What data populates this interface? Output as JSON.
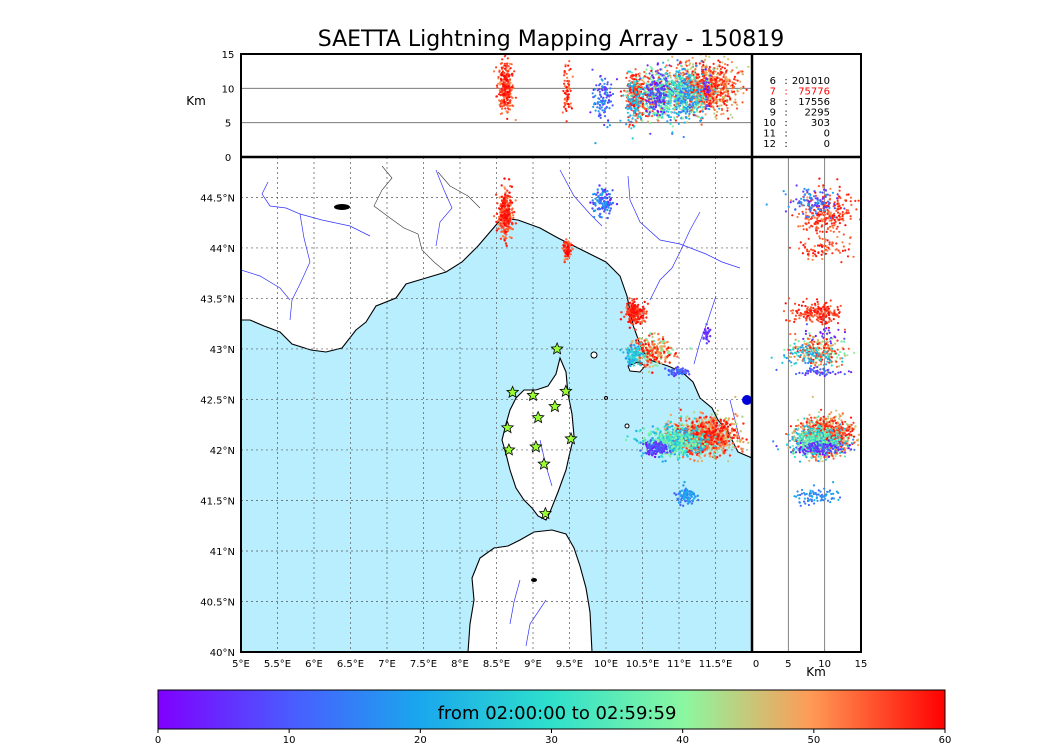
{
  "chart_data": {
    "type": "scatter",
    "title": "SAETTA Lightning Mapping Array - 150819",
    "top_panel": {
      "ylabel": "Km",
      "ylim": [
        0,
        15
      ],
      "yticks": [
        "0",
        "5",
        "10",
        "15"
      ],
      "hlines": [
        5,
        10
      ]
    },
    "side_panel": {
      "xlabel": "Km",
      "xlim": [
        0,
        15
      ],
      "xticks": [
        "0",
        "5",
        "10",
        "15"
      ],
      "vlines": [
        5,
        10
      ]
    },
    "map": {
      "lon_range": [
        5,
        12
      ],
      "lat_range": [
        40,
        44.9
      ],
      "lon_ticks": [
        {
          "v": 5,
          "t": "5°E"
        },
        {
          "v": 5.5,
          "t": "5.5°E"
        },
        {
          "v": 6,
          "t": "6°E"
        },
        {
          "v": 6.5,
          "t": "6.5°E"
        },
        {
          "v": 7,
          "t": "7°E"
        },
        {
          "v": 7.5,
          "t": "7.5°E"
        },
        {
          "v": 8,
          "t": "8°E"
        },
        {
          "v": 8.5,
          "t": "8.5°E"
        },
        {
          "v": 9,
          "t": "9°E"
        },
        {
          "v": 9.5,
          "t": "9.5°E"
        },
        {
          "v": 10,
          "t": "10°E"
        },
        {
          "v": 10.5,
          "t": "10.5°E"
        },
        {
          "v": 11,
          "t": "11°E"
        },
        {
          "v": 11.5,
          "t": "11.5°E"
        }
      ],
      "lat_ticks": [
        {
          "v": 40,
          "t": "40°N"
        },
        {
          "v": 40.5,
          "t": "40.5°N"
        },
        {
          "v": 41,
          "t": "41°N"
        },
        {
          "v": 41.5,
          "t": "41.5°N"
        },
        {
          "v": 42,
          "t": "42°N"
        },
        {
          "v": 42.5,
          "t": "42.5°N"
        },
        {
          "v": 43,
          "t": "43°N"
        },
        {
          "v": 43.5,
          "t": "43.5°N"
        },
        {
          "v": 44,
          "t": "44°N"
        },
        {
          "v": 44.5,
          "t": "44.5°N"
        }
      ],
      "stations": [
        [
          9.33,
          43.0
        ],
        [
          8.72,
          42.57
        ],
        [
          9.0,
          42.54
        ],
        [
          9.45,
          42.58
        ],
        [
          9.3,
          42.43
        ],
        [
          9.07,
          42.32
        ],
        [
          8.65,
          42.22
        ],
        [
          9.52,
          42.11
        ],
        [
          9.04,
          42.03
        ],
        [
          8.67,
          42.0
        ],
        [
          9.15,
          41.86
        ],
        [
          9.17,
          41.37
        ]
      ],
      "clusters": [
        {
          "lon": 8.63,
          "lat": 44.33,
          "slon": 0.05,
          "slat": 0.12,
          "n": 260,
          "tmin": 50,
          "tmax": 60,
          "alt": 10
        },
        {
          "lon": 9.47,
          "lat": 43.98,
          "slon": 0.03,
          "slat": 0.04,
          "n": 70,
          "tmin": 50,
          "tmax": 60,
          "alt": 10
        },
        {
          "lon": 9.95,
          "lat": 44.45,
          "slon": 0.07,
          "slat": 0.06,
          "n": 110,
          "tmin": 2,
          "tmax": 20,
          "alt": 8
        },
        {
          "lon": 10.4,
          "lat": 43.36,
          "slon": 0.07,
          "slat": 0.05,
          "n": 200,
          "tmin": 52,
          "tmax": 60,
          "alt": 9
        },
        {
          "lon": 10.62,
          "lat": 42.98,
          "slon": 0.15,
          "slat": 0.07,
          "n": 260,
          "tmin": 35,
          "tmax": 60,
          "alt": 9
        },
        {
          "lon": 10.38,
          "lat": 42.93,
          "slon": 0.06,
          "slat": 0.05,
          "n": 90,
          "tmin": 15,
          "tmax": 30,
          "alt": 8
        },
        {
          "lon": 11.0,
          "lat": 42.78,
          "slon": 0.08,
          "slat": 0.02,
          "n": 50,
          "tmin": 2,
          "tmax": 15,
          "alt": 9
        },
        {
          "lon": 11.35,
          "lat": 42.14,
          "slon": 0.22,
          "slat": 0.09,
          "n": 900,
          "tmin": 42,
          "tmax": 60,
          "alt": 10
        },
        {
          "lon": 10.95,
          "lat": 42.08,
          "slon": 0.22,
          "slat": 0.07,
          "n": 500,
          "tmin": 15,
          "tmax": 42,
          "alt": 9
        },
        {
          "lon": 10.7,
          "lat": 42.02,
          "slon": 0.08,
          "slat": 0.03,
          "n": 120,
          "tmin": 0,
          "tmax": 12,
          "alt": 9
        },
        {
          "lon": 11.1,
          "lat": 41.55,
          "slon": 0.06,
          "slat": 0.04,
          "n": 80,
          "tmin": 10,
          "tmax": 22,
          "alt": 9
        },
        {
          "lon": 11.4,
          "lat": 43.13,
          "slon": 0.03,
          "slat": 0.04,
          "n": 25,
          "tmin": 0,
          "tmax": 10,
          "alt": 10
        }
      ]
    },
    "legend_counts": [
      {
        "k": "6",
        "v": "201010",
        "highlight": false
      },
      {
        "k": "7",
        "v": "75776",
        "highlight": true
      },
      {
        "k": "8",
        "v": "17556",
        "highlight": false
      },
      {
        "k": "9",
        "v": "2295",
        "highlight": false
      },
      {
        "k": "10",
        "v": "303",
        "highlight": false
      },
      {
        "k": "11",
        "v": "0",
        "highlight": false
      },
      {
        "k": "12",
        "v": "0",
        "highlight": false
      }
    ],
    "colorbar": {
      "label": "from 02:00:00 to 02:59:59",
      "range": [
        0,
        60
      ],
      "ticks": [
        "0",
        "10",
        "20",
        "30",
        "40",
        "50",
        "60"
      ]
    },
    "colors": {
      "sea": "#b9eeff",
      "land": "#ffffff",
      "rivers": "#3333ff",
      "highlight": "#ff0000"
    }
  }
}
